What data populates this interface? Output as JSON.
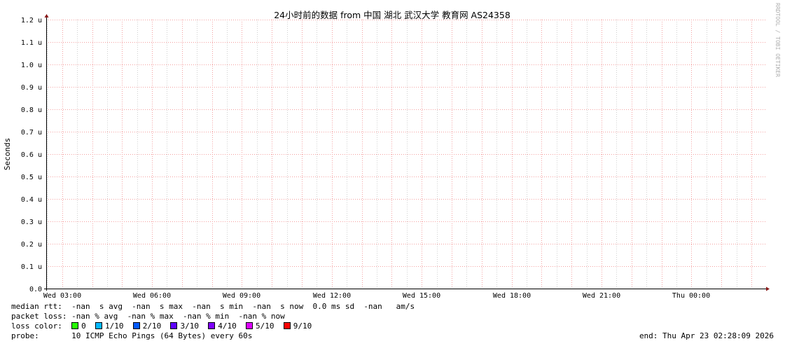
{
  "chart_data": {
    "type": "line",
    "title": "24小时前的数据 from  中国 湖北 武汉大学 教育网 AS24358",
    "ylabel": "Seconds",
    "xlabel": "",
    "ylim": [
      0,
      1.2
    ],
    "yticks": [
      "0.0",
      "0.1 u",
      "0.2 u",
      "0.3 u",
      "0.4 u",
      "0.5 u",
      "0.6 u",
      "0.7 u",
      "0.8 u",
      "0.9 u",
      "1.0 u",
      "1.1 u",
      "1.2 u"
    ],
    "xrange": [
      "Wed 02:28:09",
      "Thu 02:28:09"
    ],
    "xticks": [
      {
        "label": "Wed 03:00",
        "hour": 3
      },
      {
        "label": "Wed 06:00",
        "hour": 6
      },
      {
        "label": "Wed 09:00",
        "hour": 9
      },
      {
        "label": "Wed 12:00",
        "hour": 12
      },
      {
        "label": "Wed 15:00",
        "hour": 15
      },
      {
        "label": "Wed 18:00",
        "hour": 18
      },
      {
        "label": "Wed 21:00",
        "hour": 21
      },
      {
        "label": "Thu 00:00",
        "hour": 24
      }
    ],
    "grid": true,
    "series": [],
    "watermark": "RRDTOOL / TOBI OETIKER"
  },
  "legend": {
    "median_rtt": "median rtt:  -nan  s avg  -nan  s max  -nan  s min  -nan  s now  0.0 ms sd  -nan   am/s",
    "packet_loss": "packet loss: -nan % avg  -nan % max  -nan % min  -nan % now",
    "loss_color_label": "loss color:",
    "loss_colors": [
      {
        "label": "0",
        "color": "#26ff00"
      },
      {
        "label": "1/10",
        "color": "#00b8ff"
      },
      {
        "label": "2/10",
        "color": "#0059ff"
      },
      {
        "label": "3/10",
        "color": "#5e00ff"
      },
      {
        "label": "4/10",
        "color": "#7e00ff"
      },
      {
        "label": "5/10",
        "color": "#dd00ff"
      },
      {
        "label": "9/10",
        "color": "#ff0000"
      }
    ],
    "probe_label": "probe:",
    "probe": "10 ICMP Echo Pings (64 Bytes) every 60s",
    "end": "end: Thu Apr 23 02:28:09 2026"
  }
}
